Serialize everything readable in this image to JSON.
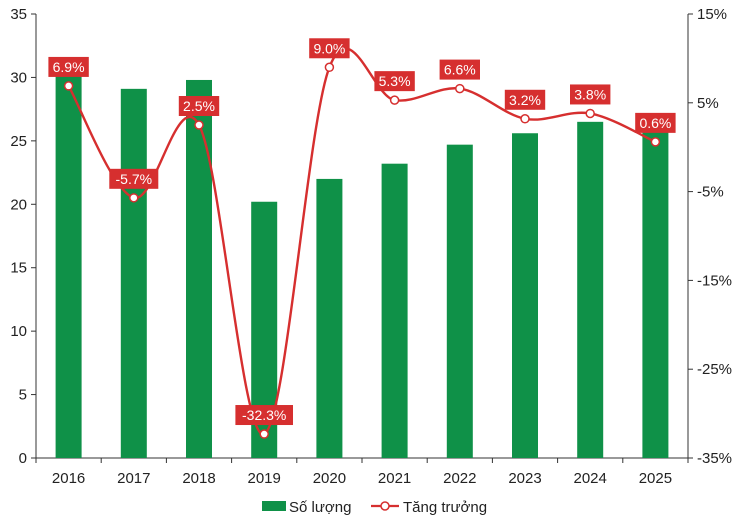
{
  "chart_data": {
    "type": "bar+line",
    "categories": [
      "2016",
      "2017",
      "2018",
      "2019",
      "2020",
      "2021",
      "2022",
      "2023",
      "2024",
      "2025"
    ],
    "series": [
      {
        "name": "Số lượng",
        "type": "bar",
        "axis": "left",
        "color": "#0f9148",
        "values": [
          30.9,
          29.1,
          29.8,
          20.2,
          22.0,
          23.2,
          24.7,
          25.6,
          26.5,
          26.6
        ]
      },
      {
        "name": "Tăng trưởng",
        "type": "line",
        "axis": "right",
        "color": "#d62f2f",
        "values": [
          6.9,
          -5.7,
          2.5,
          -32.3,
          9.0,
          5.3,
          6.6,
          3.2,
          3.8,
          0.6
        ],
        "labels": [
          "6.9%",
          "-5.7%",
          "2.5%",
          "-32.3%",
          "9.0%",
          "5.3%",
          "6.6%",
          "3.2%",
          "3.8%",
          "0.6%"
        ]
      }
    ],
    "left_axis": {
      "ylim": [
        0,
        35
      ],
      "ticks": [
        0,
        5,
        10,
        15,
        20,
        25,
        30,
        35
      ],
      "tick_labels": [
        "0",
        "5",
        "10",
        "15",
        "20",
        "25",
        "30",
        "35"
      ]
    },
    "right_axis": {
      "ylim": [
        -35,
        15
      ],
      "ticks": [
        -35,
        -25,
        -15,
        -5,
        5,
        15
      ],
      "tick_labels": [
        "-35%",
        "-25%",
        "-15%",
        "-5%",
        "5%",
        "15%"
      ]
    },
    "legend": {
      "position": "bottom",
      "items": [
        "Số lượng",
        "Tăng trưởng"
      ]
    },
    "title": "",
    "xlabel": "",
    "ylabel": "",
    "grid": false
  }
}
